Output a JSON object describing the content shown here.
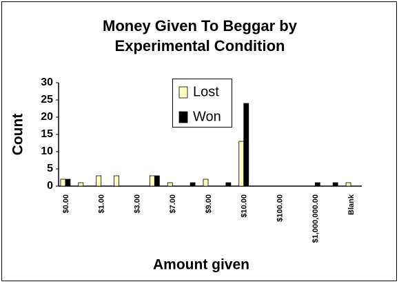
{
  "chart_data": {
    "type": "bar",
    "title": [
      "Money Given To Beggar by",
      "Experimental Condition"
    ],
    "x_label": "Amount given",
    "y_label": "Count",
    "categories": [
      "$0.00",
      null,
      "$1.00",
      null,
      "$3.00",
      null,
      "$7.00",
      null,
      "$9.00",
      null,
      "$10.00",
      null,
      "$100.00",
      null,
      "$1,000,000.00",
      null,
      "Blank"
    ],
    "series": [
      {
        "name": "Lost",
        "color": "#ffffc0",
        "values": [
          2,
          1,
          3,
          3,
          0,
          3,
          1,
          0,
          2,
          0,
          13,
          0,
          0,
          0,
          0,
          0,
          1
        ]
      },
      {
        "name": "Won",
        "color": "#000000",
        "values": [
          2,
          0,
          0,
          0,
          0,
          3,
          0,
          1,
          0,
          1,
          24,
          0,
          0,
          0,
          1,
          1,
          0
        ]
      }
    ],
    "ylim": [
      0,
      30
    ],
    "yticks": [
      0,
      5,
      10,
      15,
      20,
      25,
      30
    ],
    "grid": false,
    "legend": "top"
  }
}
